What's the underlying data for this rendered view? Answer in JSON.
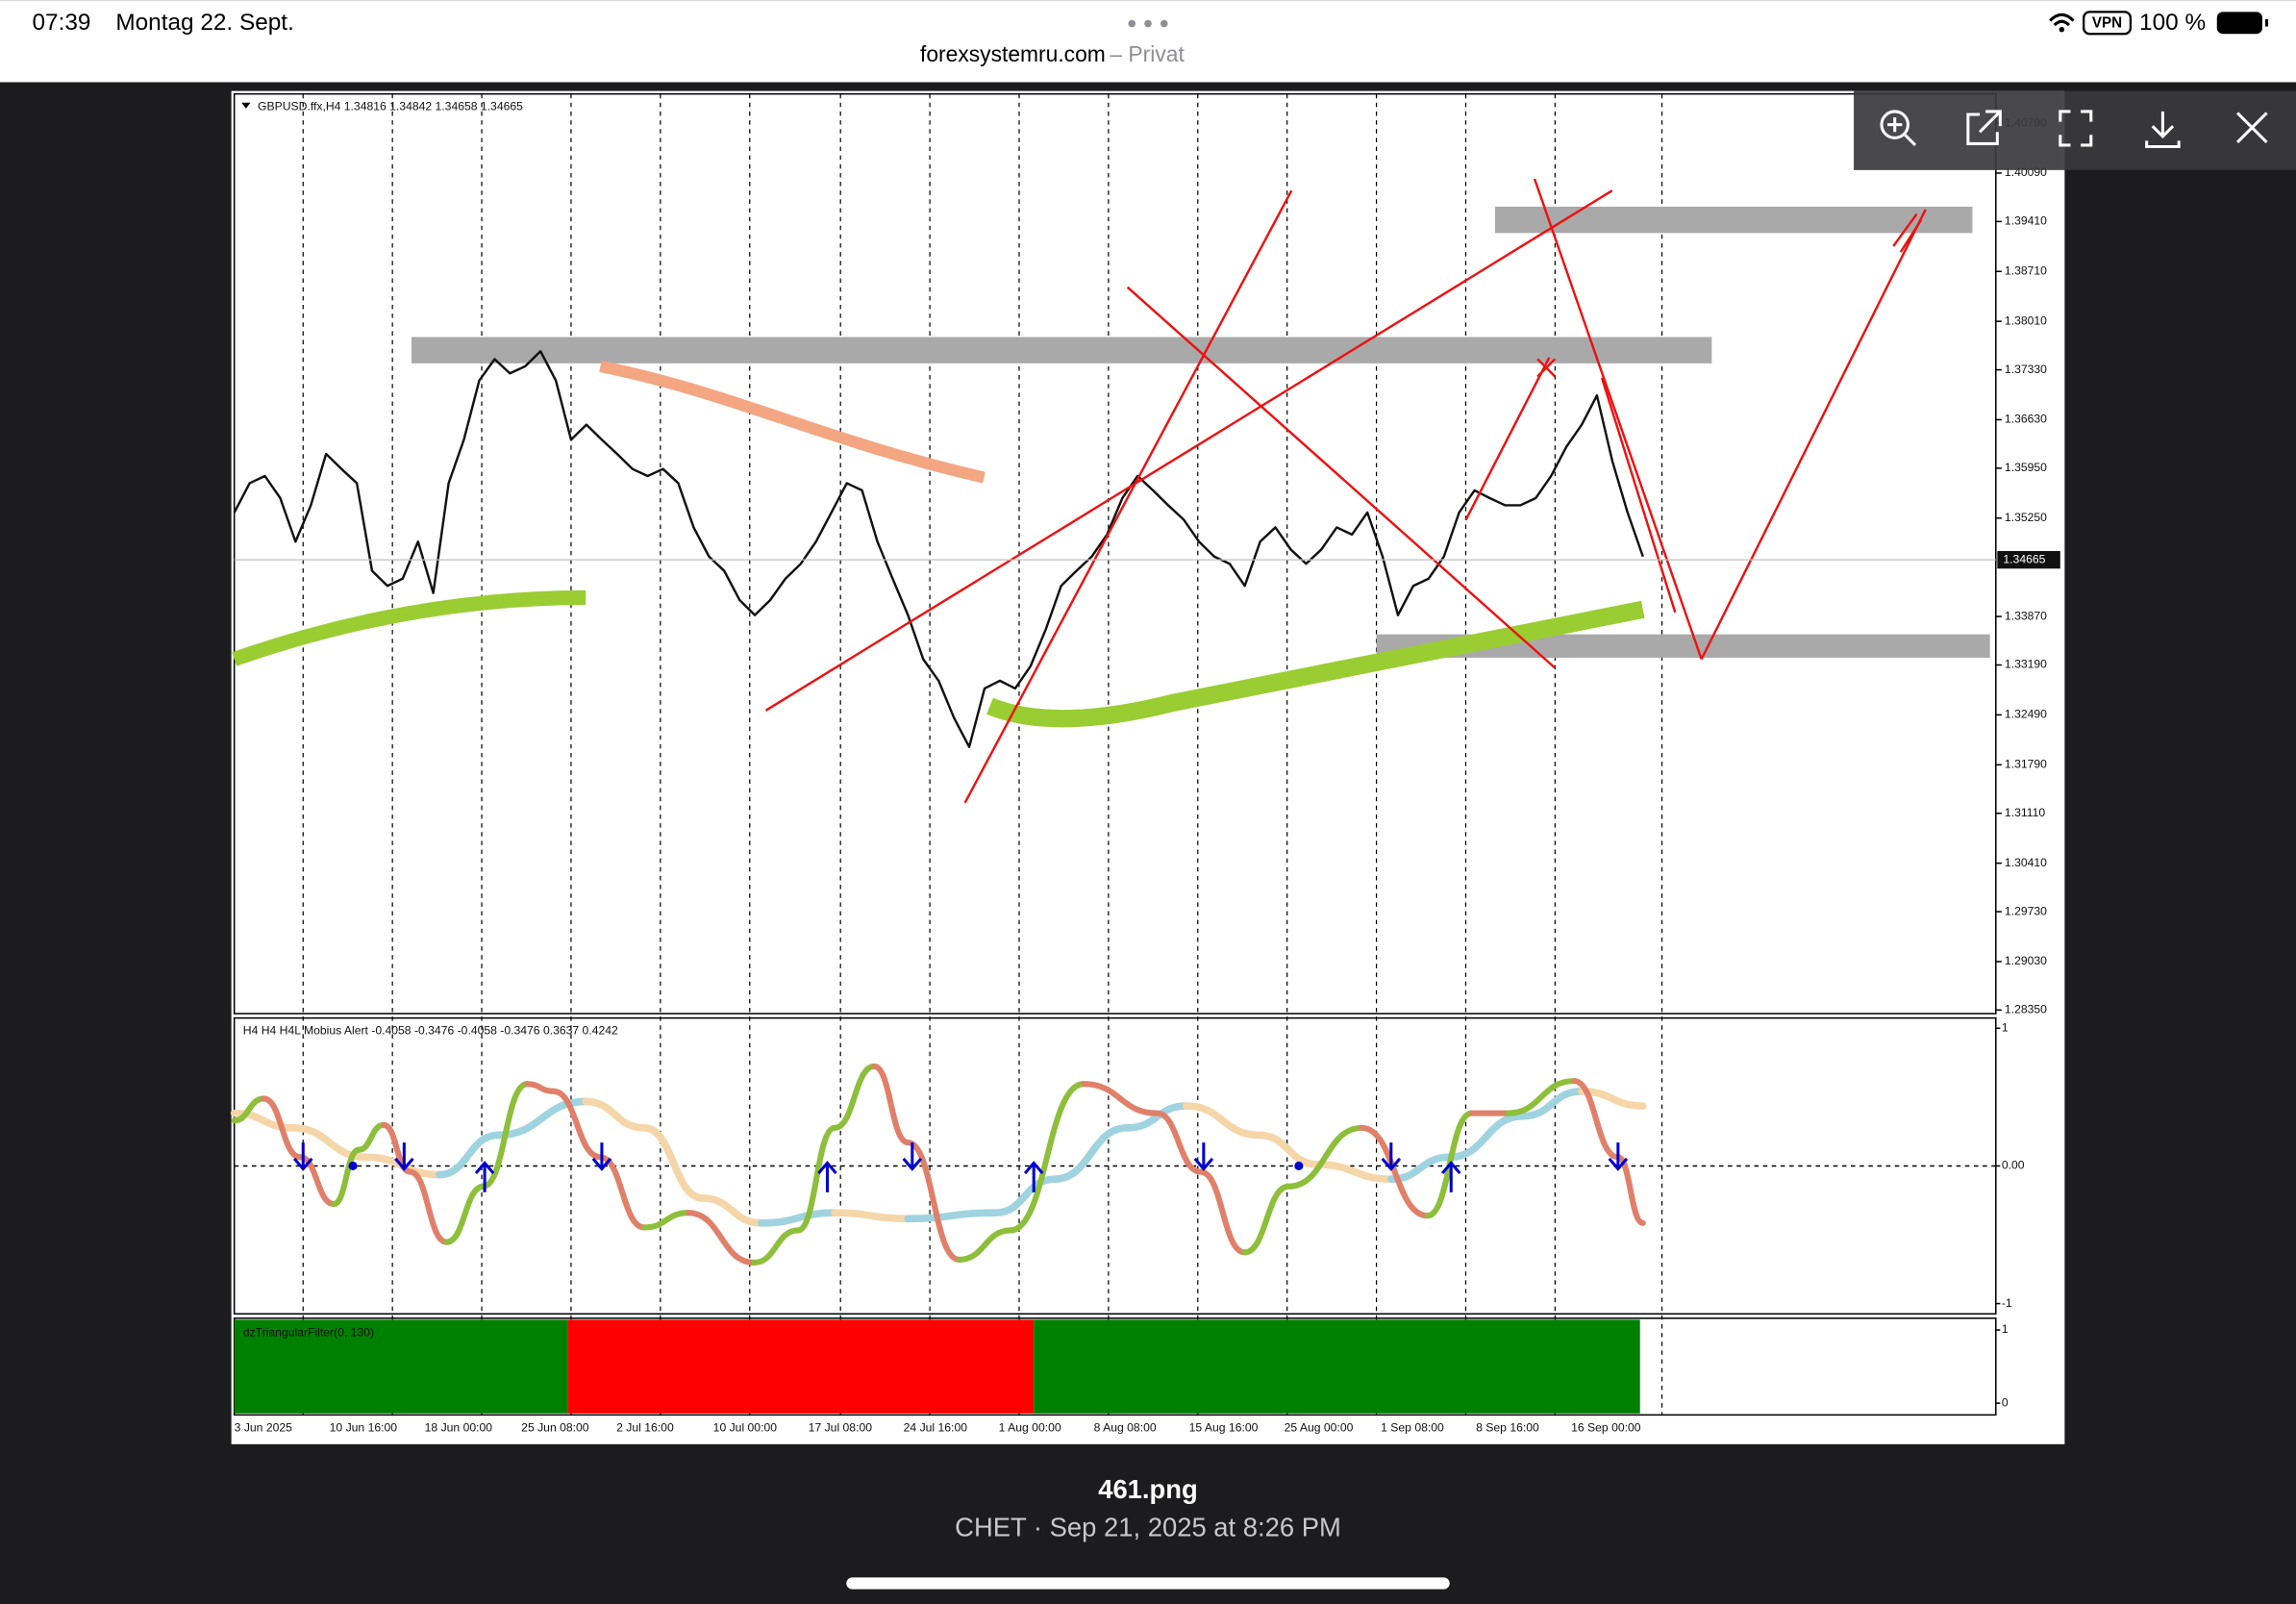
{
  "status_bar": {
    "time": "07:39",
    "date": "Montag 22. Sept.",
    "url": "forexsystemru.com",
    "privacy": "– Privat",
    "vpn": "VPN",
    "battery": "100 %"
  },
  "chart_data": {
    "type": "line",
    "title": "GBPUSD.ffx,H4  1.34816 1.34842 1.34658 1.34665",
    "color": "#111111",
    "values": [
      1.3533,
      1.3574,
      1.3584,
      1.3553,
      1.3492,
      1.3543,
      1.3615,
      1.3594,
      1.3574,
      1.3451,
      1.343,
      1.344,
      1.3492,
      1.342,
      1.3574,
      1.3635,
      1.3718,
      1.3748,
      1.3728,
      1.3738,
      1.3759,
      1.3718,
      1.3635,
      1.3656,
      1.3635,
      1.3615,
      1.3594,
      1.3584,
      1.3594,
      1.3574,
      1.3512,
      1.3471,
      1.3451,
      1.341,
      1.3389,
      1.341,
      1.344,
      1.3461,
      1.3492,
      1.3533,
      1.3574,
      1.3564,
      1.3492,
      1.344,
      1.3389,
      1.3327,
      1.3297,
      1.3245,
      1.3204,
      1.3286,
      1.3297,
      1.3286,
      1.3317,
      1.3369,
      1.343,
      1.3451,
      1.3471,
      1.3502,
      1.3553,
      1.3584,
      1.3564,
      1.3543,
      1.3523,
      1.3492,
      1.3471,
      1.3461,
      1.343,
      1.3492,
      1.3512,
      1.3481,
      1.3461,
      1.3481,
      1.3512,
      1.3502,
      1.3533,
      1.3471,
      1.3389,
      1.343,
      1.344,
      1.3471,
      1.3533,
      1.3564,
      1.3553,
      1.3543,
      1.3543,
      1.3553,
      1.3584,
      1.3625,
      1.3656,
      1.3697,
      1.3605,
      1.3533,
      1.3471
    ],
    "ylim": [
      1.283,
      1.412
    ],
    "yticks": [
      {
        "value": 1.4079,
        "label": "1.40790"
      },
      {
        "value": 1.4009,
        "label": "1.40090"
      },
      {
        "value": 1.3941,
        "label": "1.39410"
      },
      {
        "value": 1.3871,
        "label": "1.38710"
      },
      {
        "value": 1.3801,
        "label": "1.38010"
      },
      {
        "value": 1.3733,
        "label": "1.37330"
      },
      {
        "value": 1.3663,
        "label": "1.36630"
      },
      {
        "value": 1.3595,
        "label": "1.35950"
      },
      {
        "value": 1.3525,
        "label": "1.35250"
      },
      {
        "value": 1.3387,
        "label": "1.33870"
      },
      {
        "value": 1.3319,
        "label": "1.33190"
      },
      {
        "value": 1.3249,
        "label": "1.32490"
      },
      {
        "value": 1.3179,
        "label": "1.31790"
      },
      {
        "value": 1.3111,
        "label": "1.31110"
      },
      {
        "value": 1.3041,
        "label": "1.30410"
      },
      {
        "value": 1.2973,
        "label": "1.29730"
      },
      {
        "value": 1.2903,
        "label": "1.29030"
      },
      {
        "value": 1.2835,
        "label": "1.28350"
      }
    ],
    "current_price": 1.34665,
    "xtick_labels": [
      "3 Jun 2025",
      "10 Jun 16:00",
      "18 Jun 00:00",
      "25 Jun 08:00",
      "2 Jul 16:00",
      "10 Jul 00:00",
      "17 Jul 08:00",
      "24 Jul 16:00",
      "1 Aug 00:00",
      "8 Aug 08:00",
      "15 Aug 16:00",
      "25 Aug 00:00",
      "1 Sep 08:00",
      "8 Sep 16:00",
      "16 Sep 00:00"
    ]
  },
  "oscillator": {
    "title": "H4 H4 H4L Mobius Alert -0.4058 -0.3476 -0.4058 -0.3476 0.3637 0.4242",
    "yticks": [
      1,
      {
        "value": 0,
        "label": "0.00"
      },
      -1
    ]
  },
  "filter": {
    "title": "dzTriangularFilter(0, 130)",
    "yticks": [
      1,
      0
    ]
  },
  "footer": {
    "file_name": "461.png",
    "caption": "CHET · Sep 21, 2025 at 8:26 PM"
  }
}
